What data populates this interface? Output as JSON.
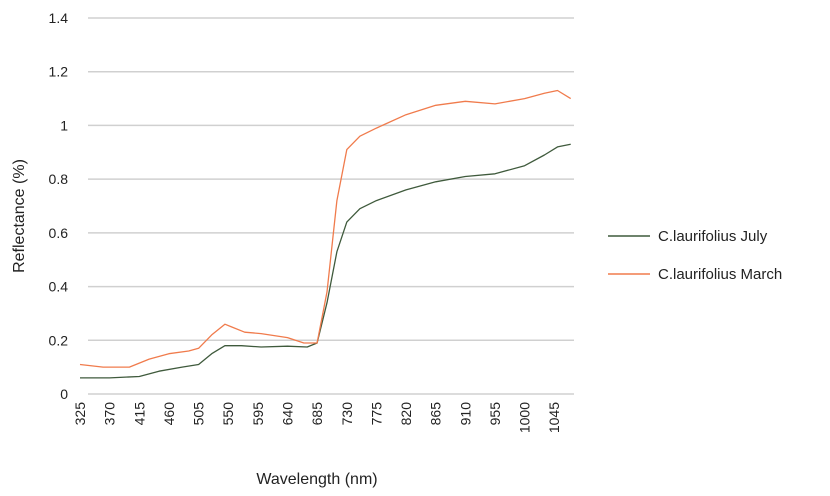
{
  "chart_data": {
    "type": "line",
    "xlabel": "Wavelength (nm)",
    "ylabel": "Reflectance (%)",
    "xlim": [
      325,
      1075
    ],
    "ylim": [
      0,
      1.4
    ],
    "y_ticks": [
      "0",
      "0.2",
      "0.4",
      "0.6",
      "0.8",
      "1",
      "1.2",
      "1.4"
    ],
    "x_ticks": [
      "325",
      "370",
      "415",
      "460",
      "505",
      "550",
      "595",
      "640",
      "685",
      "730",
      "775",
      "820",
      "865",
      "910",
      "955",
      "1000",
      "1045"
    ],
    "grid": "horizontal",
    "legend_position": "right",
    "series": [
      {
        "name": "C.laurifolius July",
        "color": "#3f5a3c",
        "points": [
          [
            325,
            0.06
          ],
          [
            370,
            0.06
          ],
          [
            415,
            0.065
          ],
          [
            445,
            0.085
          ],
          [
            480,
            0.1
          ],
          [
            505,
            0.11
          ],
          [
            525,
            0.15
          ],
          [
            545,
            0.18
          ],
          [
            570,
            0.18
          ],
          [
            600,
            0.175
          ],
          [
            640,
            0.178
          ],
          [
            670,
            0.175
          ],
          [
            685,
            0.19
          ],
          [
            700,
            0.34
          ],
          [
            715,
            0.53
          ],
          [
            730,
            0.64
          ],
          [
            750,
            0.69
          ],
          [
            775,
            0.72
          ],
          [
            820,
            0.76
          ],
          [
            865,
            0.79
          ],
          [
            910,
            0.81
          ],
          [
            955,
            0.82
          ],
          [
            1000,
            0.85
          ],
          [
            1030,
            0.89
          ],
          [
            1050,
            0.92
          ],
          [
            1070,
            0.93
          ]
        ]
      },
      {
        "name": "C.laurifolius March",
        "color": "#f07b4c",
        "points": [
          [
            325,
            0.11
          ],
          [
            360,
            0.1
          ],
          [
            400,
            0.1
          ],
          [
            430,
            0.13
          ],
          [
            460,
            0.15
          ],
          [
            490,
            0.16
          ],
          [
            505,
            0.17
          ],
          [
            525,
            0.22
          ],
          [
            545,
            0.26
          ],
          [
            555,
            0.25
          ],
          [
            575,
            0.23
          ],
          [
            600,
            0.225
          ],
          [
            640,
            0.21
          ],
          [
            665,
            0.19
          ],
          [
            685,
            0.19
          ],
          [
            700,
            0.38
          ],
          [
            715,
            0.72
          ],
          [
            730,
            0.91
          ],
          [
            750,
            0.96
          ],
          [
            775,
            0.99
          ],
          [
            820,
            1.04
          ],
          [
            865,
            1.075
          ],
          [
            910,
            1.09
          ],
          [
            955,
            1.08
          ],
          [
            1000,
            1.1
          ],
          [
            1030,
            1.12
          ],
          [
            1050,
            1.13
          ],
          [
            1070,
            1.1
          ]
        ]
      }
    ]
  }
}
